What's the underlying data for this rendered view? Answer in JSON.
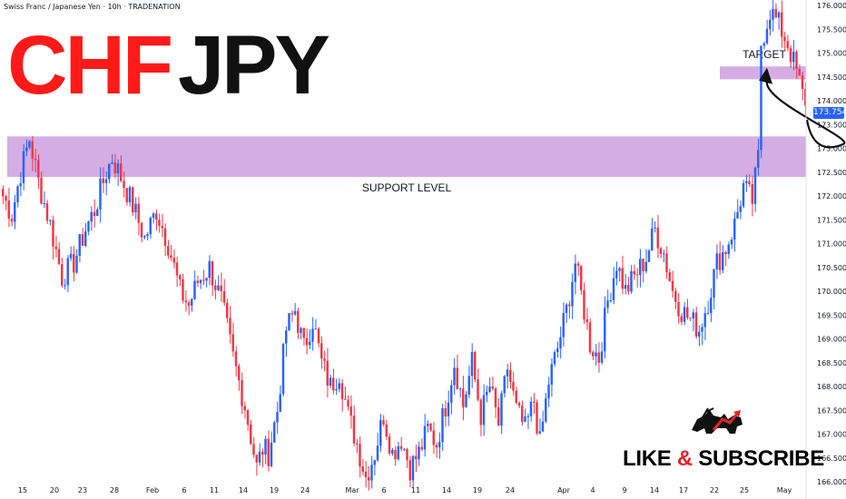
{
  "header": {
    "instrument": "Swiss Franc / Japanese Yen · 10h · TRADENATION"
  },
  "brand": {
    "title_part1": "CHF",
    "title_part2": "JPY",
    "color1": "#ff1a1a",
    "color2": "#111111"
  },
  "cta": {
    "like": "LIKE",
    "amp": "&",
    "subscribe": "SUBSCRIBE",
    "icon": "bull-bear-icon"
  },
  "colors": {
    "up": "#2962ff",
    "down": "#f23645",
    "zone": "#ce9fe0",
    "zone_edge": "#b57dd0",
    "axis_text": "#131722"
  },
  "chart_data": {
    "type": "candlestick",
    "title": "CHFJPY",
    "ylim": [
      166.0,
      176.0
    ],
    "y_ticks": [
      "176.000",
      "175.500",
      "175.000",
      "174.500",
      "174.000",
      "173.500",
      "173.000",
      "172.500",
      "172.000",
      "171.500",
      "171.000",
      "170.500",
      "170.000",
      "169.500",
      "169.000",
      "168.500",
      "168.000",
      "167.500",
      "167.000",
      "166.500",
      "166.000"
    ],
    "x_ticks": [
      "15",
      "20",
      "23",
      "28",
      "Feb",
      "6",
      "11",
      "14",
      "19",
      "24",
      "Mar",
      "6",
      "11",
      "14",
      "19",
      "24",
      "Apr",
      "4",
      "9",
      "14",
      "17",
      "22",
      "25",
      "May"
    ],
    "current_price": "173.754",
    "zones": [
      {
        "label": "SUPPORT LEVEL",
        "from": 172.4,
        "to": 173.25
      },
      {
        "label": "TARGET",
        "from": 174.45,
        "to": 174.72
      }
    ],
    "projection": {
      "from_price": 173.6,
      "dip_price": 173.05,
      "to_price": 174.5
    },
    "anchors": [
      [
        0,
        172.0
      ],
      [
        3,
        171.6
      ],
      [
        6,
        172.5
      ],
      [
        9,
        173.2
      ],
      [
        12,
        172.3
      ],
      [
        16,
        171.4
      ],
      [
        20,
        170.3
      ],
      [
        24,
        170.6
      ],
      [
        28,
        171.3
      ],
      [
        31,
        171.7
      ],
      [
        35,
        172.5
      ],
      [
        37,
        172.8
      ],
      [
        40,
        172.4
      ],
      [
        44,
        171.8
      ],
      [
        48,
        171.1
      ],
      [
        52,
        171.7
      ],
      [
        56,
        171.0
      ],
      [
        60,
        170.0
      ],
      [
        63,
        169.7
      ],
      [
        66,
        170.2
      ],
      [
        70,
        170.5
      ],
      [
        74,
        169.8
      ],
      [
        78,
        168.6
      ],
      [
        82,
        167.6
      ],
      [
        86,
        166.3
      ],
      [
        88,
        166.7
      ],
      [
        90,
        166.6
      ],
      [
        93,
        167.5
      ],
      [
        96,
        169.2
      ],
      [
        99,
        169.6
      ],
      [
        102,
        168.8
      ],
      [
        105,
        169.4
      ],
      [
        108,
        168.5
      ],
      [
        111,
        168.0
      ],
      [
        114,
        168.3
      ],
      [
        117,
        167.4
      ],
      [
        120,
        166.8
      ],
      [
        123,
        166.1
      ],
      [
        126,
        166.6
      ],
      [
        129,
        167.4
      ],
      [
        132,
        166.6
      ],
      [
        135,
        166.9
      ],
      [
        138,
        166.3
      ],
      [
        141,
        166.6
      ],
      [
        144,
        167.1
      ],
      [
        147,
        166.8
      ],
      [
        150,
        167.6
      ],
      [
        153,
        168.5
      ],
      [
        156,
        167.6
      ],
      [
        159,
        168.5
      ],
      [
        162,
        167.4
      ],
      [
        165,
        168.0
      ],
      [
        168,
        167.2
      ],
      [
        171,
        168.4
      ],
      [
        174,
        167.5
      ],
      [
        177,
        167.1
      ],
      [
        180,
        167.7
      ],
      [
        182,
        166.8
      ],
      [
        185,
        168.1
      ],
      [
        188,
        168.8
      ],
      [
        191,
        169.6
      ],
      [
        194,
        170.6
      ],
      [
        197,
        169.6
      ],
      [
        199,
        168.9
      ],
      [
        202,
        168.6
      ],
      [
        205,
        169.8
      ],
      [
        208,
        170.6
      ],
      [
        211,
        170.0
      ],
      [
        214,
        170.3
      ],
      [
        218,
        170.7
      ],
      [
        221,
        171.3
      ],
      [
        224,
        170.8
      ],
      [
        227,
        170.0
      ],
      [
        230,
        169.6
      ],
      [
        233,
        169.4
      ],
      [
        236,
        169.2
      ],
      [
        239,
        169.8
      ],
      [
        242,
        170.6
      ],
      [
        245,
        170.9
      ],
      [
        248,
        171.4
      ],
      [
        251,
        172.2
      ],
      [
        254,
        171.9
      ],
      [
        256,
        172.8
      ],
      [
        257,
        175.2
      ],
      [
        260,
        175.9
      ],
      [
        263,
        175.6
      ],
      [
        266,
        175.2
      ],
      [
        269,
        174.6
      ],
      [
        272,
        173.9
      ]
    ]
  }
}
